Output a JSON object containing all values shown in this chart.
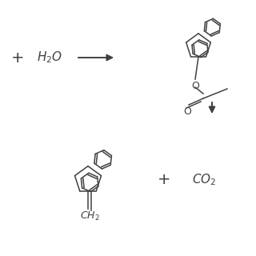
{
  "background_color": "#ffffff",
  "line_color": "#404040",
  "text_color": "#404040",
  "fig_width": 3.2,
  "fig_height": 3.2,
  "dpi": 100
}
